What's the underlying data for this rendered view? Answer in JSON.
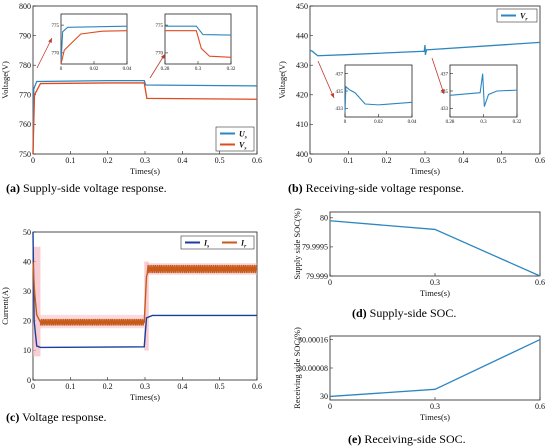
{
  "captions": {
    "a": {
      "letter": "(a)",
      "text": "Supply-side voltage response."
    },
    "b": {
      "letter": "(b)",
      "text": "Receiving-side voltage response."
    },
    "c": {
      "letter": "(c)",
      "text": "Voltage response."
    },
    "d": {
      "letter": "(d)",
      "text": "Supply-side SOC."
    },
    "e": {
      "letter": "(e)",
      "text": "Receiving-side SOC."
    }
  },
  "colors": {
    "blue": "#2e86c1",
    "orange": "#e04a1f",
    "orange_band": "#c85a1a",
    "pink_band": "#f5b8c0",
    "blue_dark": "#1f5fa8",
    "dark_blue": "#1a3f9c"
  },
  "chart_data": [
    {
      "id": "a",
      "type": "line",
      "xlabel": "Times(s)",
      "ylabel": "Voltage(V)",
      "xlim": [
        0,
        0.6
      ],
      "ylim": [
        750,
        800
      ],
      "xticks": [
        "0",
        "0.1",
        "0.2",
        "0.3",
        "0.4",
        "0.5",
        "0.6"
      ],
      "yticks": [
        "750",
        "760",
        "770",
        "780",
        "790",
        "800"
      ],
      "legend": "bottom-right",
      "series": [
        {
          "name": "U_s",
          "color": "#2e86c1",
          "points": [
            [
              0,
              750
            ],
            [
              0.002,
              772
            ],
            [
              0.01,
              774.5
            ],
            [
              0.2,
              774.8
            ],
            [
              0.298,
              774.8
            ],
            [
              0.302,
              773.3
            ],
            [
              0.6,
              773.0
            ]
          ]
        },
        {
          "name": "V_s",
          "color": "#e04a1f",
          "points": [
            [
              0,
              750
            ],
            [
              0.004,
              770
            ],
            [
              0.02,
              773.8
            ],
            [
              0.2,
              774.0
            ],
            [
              0.298,
              774.0
            ],
            [
              0.305,
              768.8
            ],
            [
              0.6,
              768.5
            ]
          ]
        }
      ],
      "insets": [
        {
          "xlim": [
            0,
            0.04
          ],
          "ylim": [
            768,
            777
          ],
          "xticks": [
            "0",
            "0.02",
            "0.04"
          ],
          "yticks": [
            "770",
            "775"
          ],
          "series": [
            {
              "color": "#2e86c1",
              "points": [
                [
                  0,
                  768
                ],
                [
                  0.001,
                  773.8
                ],
                [
                  0.004,
                  774.6
                ],
                [
                  0.04,
                  774.8
                ]
              ]
            },
            {
              "color": "#e04a1f",
              "points": [
                [
                  0,
                  768
                ],
                [
                  0.002,
                  770.5
                ],
                [
                  0.012,
                  773.4
                ],
                [
                  0.025,
                  773.9
                ],
                [
                  0.04,
                  774.0
                ]
              ]
            }
          ]
        },
        {
          "xlim": [
            0.28,
            0.32
          ],
          "ylim": [
            768,
            777
          ],
          "xticks": [
            "0.28",
            "0.3",
            "0.32"
          ],
          "yticks": [
            "770",
            "775"
          ],
          "series": [
            {
              "color": "#2e86c1",
              "points": [
                [
                  0.28,
                  774.8
                ],
                [
                  0.299,
                  774.8
                ],
                [
                  0.303,
                  773.3
                ],
                [
                  0.32,
                  773.2
                ]
              ]
            },
            {
              "color": "#e04a1f",
              "points": [
                [
                  0.28,
                  774.0
                ],
                [
                  0.299,
                  774.0
                ],
                [
                  0.302,
                  770.8
                ],
                [
                  0.307,
                  769.4
                ],
                [
                  0.32,
                  769.2
                ]
              ]
            }
          ]
        }
      ]
    },
    {
      "id": "b",
      "type": "line",
      "xlabel": "Times(s)",
      "ylabel": "Voltage(V)",
      "xlim": [
        0,
        0.6
      ],
      "ylim": [
        400,
        450
      ],
      "xticks": [
        "0",
        "0.1",
        "0.2",
        "0.3",
        "0.4",
        "0.5",
        "0.6"
      ],
      "yticks": [
        "400",
        "410",
        "420",
        "430",
        "440",
        "450"
      ],
      "legend": "top-right",
      "series": [
        {
          "name": "V_r",
          "color": "#2e86c1",
          "points": [
            [
              0,
              435
            ],
            [
              0.005,
              434.8
            ],
            [
              0.02,
              433.2
            ],
            [
              0.1,
              433.6
            ],
            [
              0.298,
              434.7
            ],
            [
              0.3,
              436.8
            ],
            [
              0.301,
              433.5
            ],
            [
              0.304,
              435.2
            ],
            [
              0.6,
              437.7
            ]
          ]
        }
      ],
      "insets": [
        {
          "xlim": [
            0,
            0.04
          ],
          "ylim": [
            432,
            438
          ],
          "xticks": [
            "0",
            "0.02",
            "0.04"
          ],
          "yticks": [
            "433",
            "435",
            "437"
          ],
          "series": [
            {
              "color": "#2e86c1",
              "points": [
                [
                  0,
                  432.5
                ],
                [
                  0.0005,
                  435.5
                ],
                [
                  0.003,
                  435.1
                ],
                [
                  0.006,
                  434.8
                ],
                [
                  0.012,
                  433.5
                ],
                [
                  0.02,
                  433.4
                ],
                [
                  0.04,
                  433.7
                ]
              ]
            }
          ]
        },
        {
          "xlim": [
            0.28,
            0.32
          ],
          "ylim": [
            432,
            438
          ],
          "xticks": [
            "0.28",
            "0.3",
            "0.32"
          ],
          "yticks": [
            "433",
            "435",
            "437"
          ],
          "series": [
            {
              "color": "#2e86c1",
              "points": [
                [
                  0.28,
                  434.5
                ],
                [
                  0.298,
                  434.8
                ],
                [
                  0.2995,
                  437.0
                ],
                [
                  0.3005,
                  433.2
                ],
                [
                  0.303,
                  434.6
                ],
                [
                  0.308,
                  435.0
                ],
                [
                  0.32,
                  435.1
                ]
              ]
            }
          ]
        }
      ]
    },
    {
      "id": "c",
      "type": "line",
      "xlabel": "Times(s)",
      "ylabel": "Current(A)",
      "xlim": [
        0,
        0.6
      ],
      "ylim": [
        0,
        50
      ],
      "xticks": [
        "0",
        "0.1",
        "0.2",
        "0.3",
        "0.4",
        "0.5",
        "0.6"
      ],
      "yticks": [
        "0",
        "10",
        "20",
        "30",
        "40",
        "50"
      ],
      "legend": "top-right",
      "series": [
        {
          "name": "I_s",
          "color": "#1a3f9c",
          "points": [
            [
              0,
              50
            ],
            [
              0.003,
              20
            ],
            [
              0.01,
              11.5
            ],
            [
              0.02,
              11
            ],
            [
              0.298,
              11.2
            ],
            [
              0.304,
              21
            ],
            [
              0.32,
              21.8
            ],
            [
              0.6,
              21.8
            ]
          ]
        },
        {
          "name": "I_r",
          "color": "#c85a1a",
          "points": [
            [
              0,
              40
            ],
            [
              0.004,
              30
            ],
            [
              0.01,
              22
            ],
            [
              0.02,
              19.5
            ],
            [
              0.298,
              19.5
            ],
            [
              0.304,
              35
            ],
            [
              0.31,
              37.5
            ],
            [
              0.6,
              37.5
            ]
          ]
        }
      ]
    },
    {
      "id": "d",
      "type": "line",
      "xlabel": "Times(s)",
      "ylabel": "Supply side SOC(%)",
      "xlim": [
        0,
        0.6
      ],
      "ylim": [
        79.999,
        80.0001
      ],
      "xticks": [
        "0",
        "0.3",
        "0.6"
      ],
      "yticks": [
        "79.999",
        "79.9995",
        "80"
      ],
      "series": [
        {
          "color": "#2e86c1",
          "points": [
            [
              0,
              79.99995
            ],
            [
              0.3,
              79.9998
            ],
            [
              0.6,
              79.999
            ]
          ]
        }
      ]
    },
    {
      "id": "e",
      "type": "line",
      "xlabel": "Times(s)",
      "ylabel": "Receiving side SOC(%)",
      "xlim": [
        0,
        0.6
      ],
      "ylim": [
        29.99999,
        30.00017
      ],
      "xticks": [
        "0",
        "0.3",
        "0.6"
      ],
      "yticks": [
        "30",
        "30.00008",
        "30.00016"
      ],
      "series": [
        {
          "color": "#2e86c1",
          "points": [
            [
              0,
              30.0
            ],
            [
              0.3,
              30.00002
            ],
            [
              0.6,
              30.00016
            ]
          ]
        }
      ]
    }
  ]
}
